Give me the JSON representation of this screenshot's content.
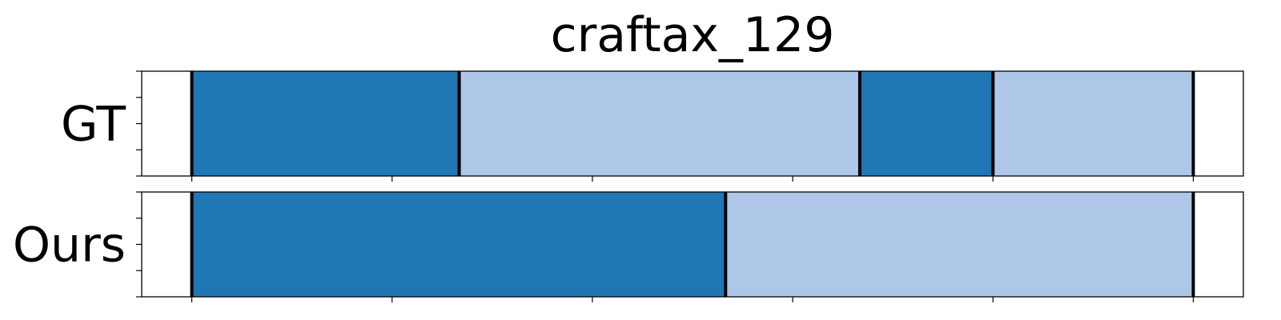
{
  "chart_data": {
    "type": "bar",
    "title": "craftax_129",
    "xlim": [
      -0.5,
      10.5
    ],
    "colors": {
      "dark": "#1f77b4",
      "light": "#aec7e8",
      "boundary": "#000000"
    },
    "rows": [
      {
        "label": "GT",
        "segments": [
          {
            "start": 0,
            "end": 2.67,
            "color": "dark"
          },
          {
            "start": 2.67,
            "end": 6.67,
            "color": "light"
          },
          {
            "start": 6.67,
            "end": 8.0,
            "color": "dark"
          },
          {
            "start": 8.0,
            "end": 10.0,
            "color": "light"
          }
        ],
        "boundaries": [
          0,
          2.67,
          6.67,
          8.0,
          10.0
        ]
      },
      {
        "label": "Ours",
        "segments": [
          {
            "start": 0,
            "end": 5.33,
            "color": "dark"
          },
          {
            "start": 5.33,
            "end": 10.0,
            "color": "light"
          }
        ],
        "boundaries": [
          0,
          5.33,
          10.0
        ]
      }
    ],
    "xticks": [
      0,
      2,
      4,
      6,
      8,
      10
    ],
    "yticks_per_row": 5,
    "tick_labels_shown": false,
    "grid": false
  }
}
